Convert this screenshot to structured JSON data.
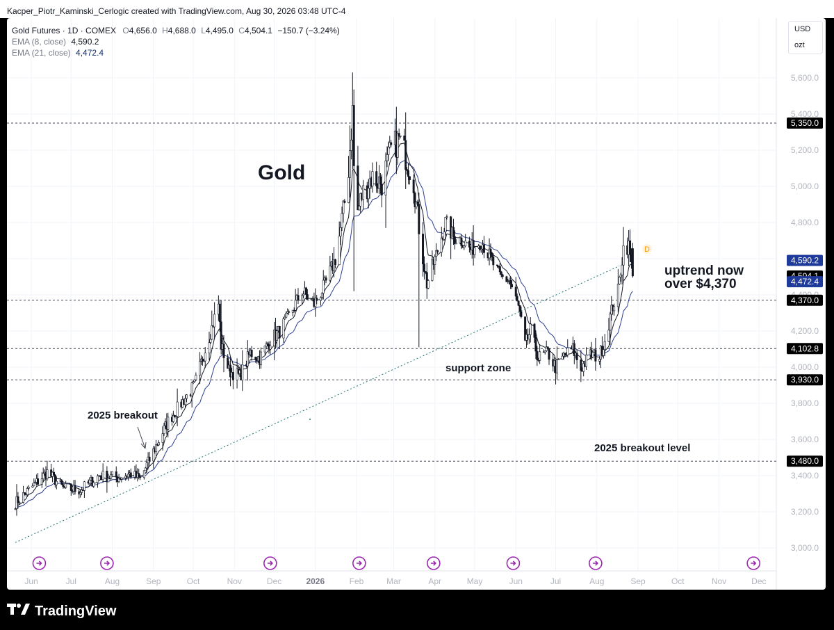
{
  "attribution": "Kacper_Piotr_Kaminski_Cerlogic created with TradingView.com, Aug 30, 2026 03:48 UTC-4",
  "legend": {
    "symbol": "Gold Futures · 1D · COMEX",
    "o_label": "O",
    "o_value": "4,656.0",
    "h_label": "H",
    "h_value": "4,688.0",
    "l_label": "L",
    "l_value": "4,495.0",
    "c_label": "C",
    "c_value": "4,504.1",
    "change": "−150.7 (−3.24%)",
    "ema8_label": "EMA (8, close)",
    "ema8_value": "4,590.2",
    "ema21_label": "EMA (21, close)",
    "ema21_value": "4,472.4"
  },
  "units": {
    "currency": "USD",
    "unit": "ozt"
  },
  "brand": "TradingView",
  "colors": {
    "candle": "#131722",
    "ema8": "#131722",
    "ema21": "#2a3d8f",
    "ema21_badge": "#1e3a9a",
    "level_badge": "#000000",
    "grid": "#f0f3fa",
    "axis_text": "#b2b5be",
    "marker": "#9c27b0",
    "d_marker": "#ff9800",
    "trendline": "#1a6e70"
  },
  "chart_data": {
    "type": "candlestick",
    "title": "Gold",
    "ylim": [
      2940,
      5680
    ],
    "y_ticks": [
      3000,
      3200,
      3400,
      3600,
      3800,
      4000,
      4200,
      4400,
      4600,
      4800,
      5000,
      5200,
      5400,
      5600
    ],
    "y_tick_labels": [
      "3,000.0",
      "3,200.0",
      "3,400.0",
      "3,600.0",
      "3,800.0",
      "4,000.0",
      "4,200.0",
      "4,400.0",
      "4,600.0",
      "4,800.0",
      "5,000.0",
      "5,200.0",
      "5,400.0",
      "5,600.0"
    ],
    "x_ticks": [
      {
        "label": "Jun",
        "date": "2025-06-01"
      },
      {
        "label": "Jul",
        "date": "2025-07-01"
      },
      {
        "label": "Aug",
        "date": "2025-08-01"
      },
      {
        "label": "Sep",
        "date": "2025-09-01"
      },
      {
        "label": "Oct",
        "date": "2025-10-01"
      },
      {
        "label": "Nov",
        "date": "2025-11-01"
      },
      {
        "label": "Dec",
        "date": "2025-12-01"
      },
      {
        "label": "2026",
        "date": "2026-01-01",
        "bold": true
      },
      {
        "label": "Feb",
        "date": "2026-02-01"
      },
      {
        "label": "Mar",
        "date": "2026-03-01"
      },
      {
        "label": "Apr",
        "date": "2026-04-01"
      },
      {
        "label": "May",
        "date": "2026-05-01"
      },
      {
        "label": "Jun",
        "date": "2026-06-01"
      },
      {
        "label": "Jul",
        "date": "2026-07-01"
      },
      {
        "label": "Aug",
        "date": "2026-08-01"
      },
      {
        "label": "Sep",
        "date": "2026-09-01"
      },
      {
        "label": "Oct",
        "date": "2026-10-01"
      },
      {
        "label": "Nov",
        "date": "2026-11-01"
      },
      {
        "label": "Dec",
        "date": "2026-12-01"
      }
    ],
    "close_path": [
      [
        "2025-05-20",
        3250
      ],
      [
        "2025-06-02",
        3340
      ],
      [
        "2025-06-13",
        3420
      ],
      [
        "2025-06-25",
        3330
      ],
      [
        "2025-07-08",
        3320
      ],
      [
        "2025-07-22",
        3400
      ],
      [
        "2025-08-05",
        3390
      ],
      [
        "2025-08-15",
        3410
      ],
      [
        "2025-08-22",
        3380
      ],
      [
        "2025-09-02",
        3550
      ],
      [
        "2025-09-12",
        3700
      ],
      [
        "2025-09-24",
        3820
      ],
      [
        "2025-10-02",
        3900
      ],
      [
        "2025-10-08",
        4050
      ],
      [
        "2025-10-15",
        4220
      ],
      [
        "2025-10-20",
        4350
      ],
      [
        "2025-10-22",
        4120
      ],
      [
        "2025-10-28",
        3980
      ],
      [
        "2025-11-05",
        3950
      ],
      [
        "2025-11-13",
        4080
      ],
      [
        "2025-11-20",
        4050
      ],
      [
        "2025-11-28",
        4150
      ],
      [
        "2025-12-05",
        4200
      ],
      [
        "2025-12-12",
        4280
      ],
      [
        "2025-12-22",
        4420
      ],
      [
        "2025-12-31",
        4350
      ],
      [
        "2026-01-08",
        4450
      ],
      [
        "2026-01-16",
        4600
      ],
      [
        "2026-01-22",
        4850
      ],
      [
        "2026-01-26",
        5100
      ],
      [
        "2026-01-29",
        5420
      ],
      [
        "2026-01-31",
        4800
      ],
      [
        "2026-02-05",
        4950
      ],
      [
        "2026-02-12",
        5050
      ],
      [
        "2026-02-20",
        5020
      ],
      [
        "2026-02-27",
        5200
      ],
      [
        "2026-03-05",
        5260
      ],
      [
        "2026-03-10",
        5170
      ],
      [
        "2026-03-16",
        5030
      ],
      [
        "2026-03-21",
        4700
      ],
      [
        "2026-03-26",
        4460
      ],
      [
        "2026-04-02",
        4620
      ],
      [
        "2026-04-09",
        4800
      ],
      [
        "2026-04-15",
        4720
      ],
      [
        "2026-04-22",
        4700
      ],
      [
        "2026-04-28",
        4650
      ],
      [
        "2026-05-06",
        4700
      ],
      [
        "2026-05-13",
        4600
      ],
      [
        "2026-05-20",
        4500
      ],
      [
        "2026-05-27",
        4480
      ],
      [
        "2026-06-03",
        4330
      ],
      [
        "2026-06-08",
        4120
      ],
      [
        "2026-06-12",
        4200
      ],
      [
        "2026-06-18",
        4050
      ],
      [
        "2026-06-25",
        4080
      ],
      [
        "2026-07-01",
        4000
      ],
      [
        "2026-07-07",
        4060
      ],
      [
        "2026-07-14",
        4100
      ],
      [
        "2026-07-20",
        3990
      ],
      [
        "2026-07-27",
        4070
      ],
      [
        "2026-08-03",
        4060
      ],
      [
        "2026-08-07",
        4150
      ],
      [
        "2026-08-13",
        4340
      ],
      [
        "2026-08-17",
        4420
      ],
      [
        "2026-08-21",
        4660
      ],
      [
        "2026-08-25",
        4670
      ],
      [
        "2026-08-28",
        4504.1
      ]
    ],
    "spikes": [
      {
        "date": "2026-01-29",
        "high": 5630
      },
      {
        "date": "2026-01-31",
        "low": 4420
      },
      {
        "date": "2026-03-20",
        "low": 4110
      },
      {
        "date": "2026-03-03",
        "high": 5440
      }
    ],
    "horizontal_levels": [
      {
        "value": 5350,
        "label": "5,350.0"
      },
      {
        "value": 4370,
        "label": "4,370.0"
      },
      {
        "value": 4102.8,
        "label": "4,102.8"
      },
      {
        "value": 3930,
        "label": "3,930.0"
      },
      {
        "value": 3480,
        "label": "3,480.0"
      }
    ],
    "price_badges": [
      {
        "value": 4590.2,
        "label": "4,590.2",
        "kind": "ema8"
      },
      {
        "value": 4504.1,
        "label": "4,504.1",
        "kind": "last"
      },
      {
        "value": 4472.4,
        "label": "4,472.4",
        "kind": "ema21"
      }
    ],
    "trendline": {
      "from": [
        "2025-05-20",
        3030
      ],
      "to": [
        "2026-08-18",
        4560
      ]
    },
    "event_markers": [
      "2025-06-07",
      "2025-07-28",
      "2025-11-28",
      "2026-02-03",
      "2026-03-31",
      "2026-05-30",
      "2026-07-31",
      "2026-11-27"
    ],
    "annotations": {
      "title": "Gold",
      "uptrend_line1": "uptrend now",
      "uptrend_line2": "over $4,370",
      "support": "support zone",
      "breakout": "2025 breakout",
      "breakout_level": "2025 breakout level",
      "d_marker": "D"
    }
  }
}
